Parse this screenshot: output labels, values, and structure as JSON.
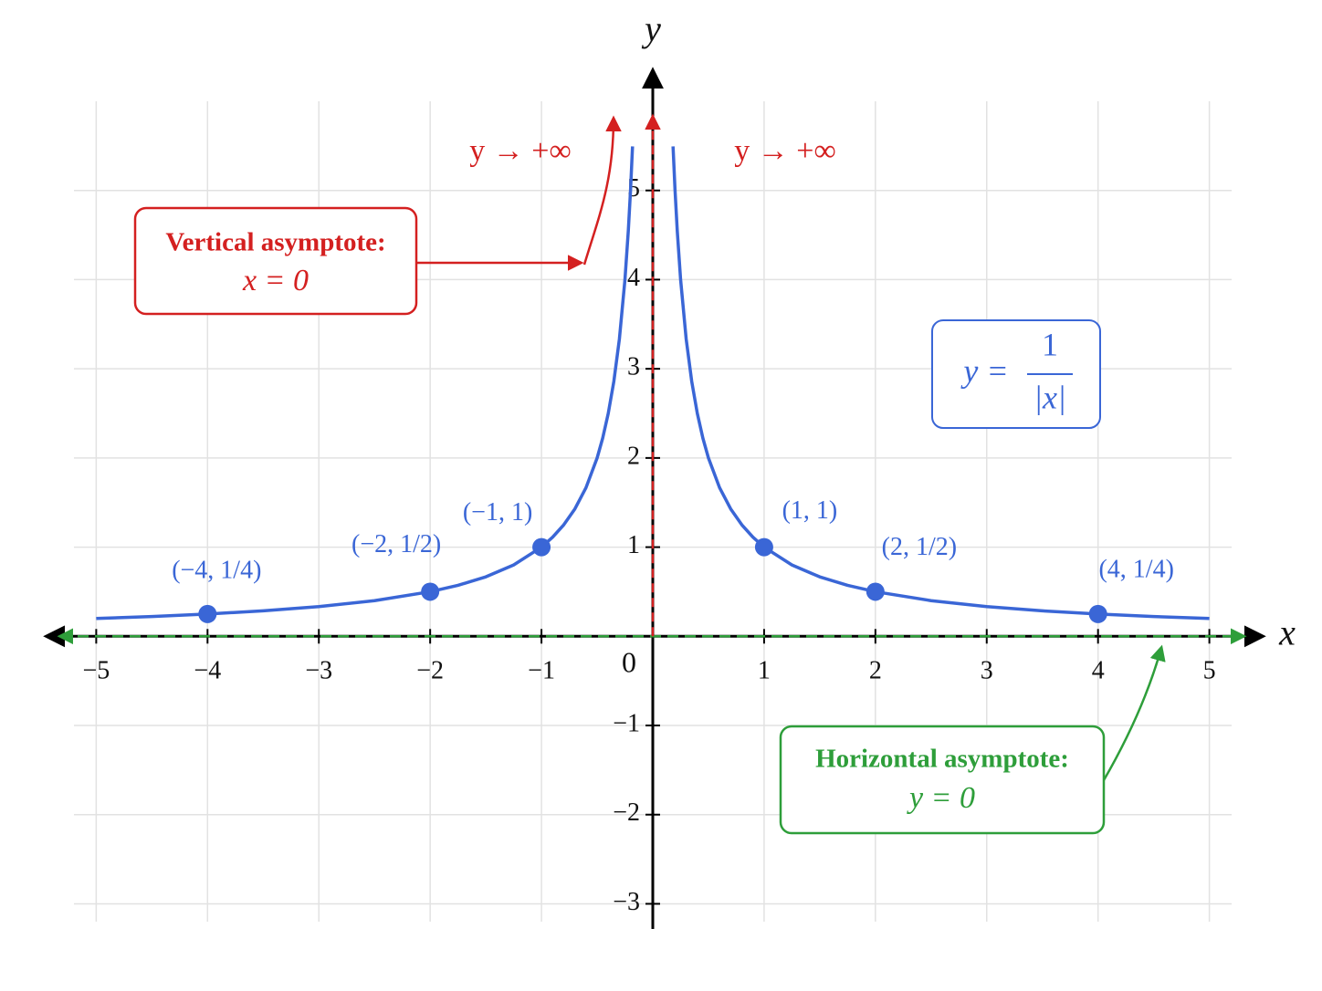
{
  "chart_data": {
    "type": "line",
    "xlabel": "x",
    "ylabel": "y",
    "xlim": [
      -5.2,
      5.2
    ],
    "ylim": [
      -3.2,
      6
    ],
    "grid": true,
    "xticks": [
      {
        "value": -5,
        "label": "−5"
      },
      {
        "value": -4,
        "label": "−4"
      },
      {
        "value": -3,
        "label": "−3"
      },
      {
        "value": -2,
        "label": "−2"
      },
      {
        "value": -1,
        "label": "−1"
      },
      0,
      1,
      2,
      3,
      4,
      5
    ],
    "yticks": [
      {
        "value": -3,
        "label": "−3"
      },
      {
        "value": -2,
        "label": "−2"
      },
      {
        "value": -1,
        "label": "−1"
      },
      1,
      2,
      3,
      4,
      5
    ],
    "x": [
      -5,
      -4.5,
      -4,
      -3.5,
      -3,
      -2.5,
      -2,
      -1.75,
      -1.5,
      -1.25,
      -1,
      -0.9,
      -0.8,
      -0.7,
      -0.6,
      -0.5,
      -0.45,
      -0.4,
      -0.35,
      -0.3,
      -0.25,
      -0.22,
      -0.2,
      -0.182,
      0,
      0.182,
      0.2,
      0.22,
      0.25,
      0.3,
      0.35,
      0.4,
      0.45,
      0.5,
      0.6,
      0.7,
      0.8,
      0.9,
      1,
      1.25,
      1.5,
      1.75,
      2,
      2.5,
      3,
      3.5,
      4,
      4.5,
      5
    ],
    "series": [
      {
        "color": "#3a66d6",
        "values": [
          0.2,
          0.2222,
          0.25,
          0.2857,
          0.3333,
          0.4,
          0.5,
          0.5714,
          0.6667,
          0.8,
          1,
          1.1111,
          1.25,
          1.4286,
          1.6667,
          2,
          2.2222,
          2.5,
          2.8571,
          3.3333,
          4,
          4.5455,
          5,
          5.4945,
          null,
          5.4945,
          5,
          4.5455,
          4,
          3.3333,
          2.8571,
          2.5,
          2.2222,
          2,
          1.6667,
          1.4286,
          1.25,
          1.1111,
          1,
          0.8,
          0.6667,
          0.5714,
          0.5,
          0.4,
          0.3333,
          0.2857,
          0.25,
          0.2222,
          0.2
        ]
      }
    ],
    "points": {
      "type": "scatter",
      "color": "#3a66d6",
      "x": [
        -4,
        -2,
        -1,
        1,
        2,
        4
      ],
      "values": [
        0.25,
        0.5,
        1,
        1,
        0.5,
        0.25
      ],
      "value_labels": [
        "(−4, 1/4)",
        "(−2, 1/2)",
        "(−1, 1)",
        "(1, 1)",
        "(2, 1/2)",
        "(4, 1/4)"
      ]
    },
    "equation": {
      "lhs": "y =",
      "numerator": "1",
      "denominator": "|x|"
    },
    "vertical_asymptote": {
      "x": 0,
      "title": "Vertical asymptote:",
      "equation": "x = 0",
      "color": "#d42020",
      "limit_labels": [
        "y → +∞",
        "y → +∞"
      ]
    },
    "horizontal_asymptote": {
      "y": 0,
      "title": "Horizontal asymptote:",
      "equation": "y = 0",
      "color": "#2e9e3a"
    }
  }
}
